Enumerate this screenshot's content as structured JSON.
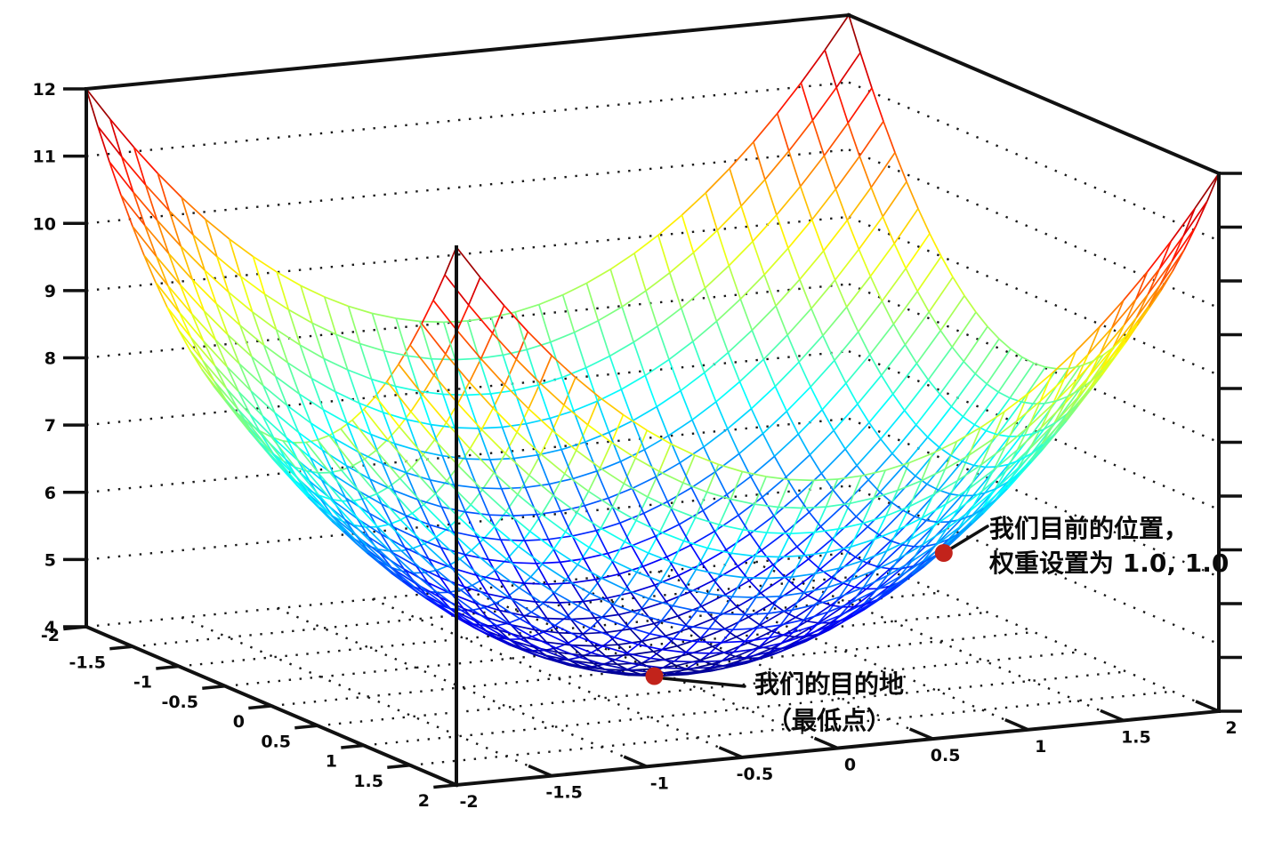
{
  "figure": {
    "background_color": "#ffffff"
  },
  "chart_data": {
    "type": "surface3d-wireframe",
    "title": "",
    "formula": "z = 4 + x^2 + y^2",
    "surface": {
      "z_base": 4,
      "x2_coeff": 1,
      "y2_coeff": 1,
      "x_range": [
        -2,
        2
      ],
      "y_range": [
        -2,
        2
      ],
      "z_range": [
        4,
        12
      ],
      "grid_cells": 32,
      "colormap": "jet"
    },
    "axes": {
      "z_ticks": [
        4,
        5,
        6,
        7,
        8,
        9,
        10,
        11,
        12
      ],
      "z_tick_labels": [
        "4",
        "5",
        "6",
        "7",
        "8",
        "9",
        "10",
        "11",
        "12"
      ],
      "x_ticks": [
        -2,
        -1.5,
        -1,
        -0.5,
        0,
        0.5,
        1,
        1.5,
        2
      ],
      "x_tick_labels": [
        "-2",
        "-1.5",
        "-1",
        "-0.5",
        "0",
        "0.5",
        "1",
        "1.5",
        "2"
      ],
      "y_ticks": [
        -2,
        -1.5,
        -1,
        -0.5,
        0,
        0.5,
        1,
        1.5,
        2
      ],
      "y_tick_labels": [
        "-2",
        "-1.5",
        "-1",
        "-0.5",
        "0",
        "0.5",
        "1",
        "1.5",
        "2"
      ],
      "right_axis_tick_count": 11,
      "wall_gridlines_z": [
        5,
        6,
        7,
        8,
        9,
        10,
        11
      ],
      "floor_grid_step": 0.5,
      "grid_style": "dotted",
      "legend": "none"
    },
    "annotations": [
      {
        "id": "current-position",
        "text_lines": [
          "我们目前的位置，",
          "权重设置为 1.0, 1.0"
        ],
        "point": {
          "x": 1,
          "y": 1,
          "z": 6
        },
        "dot_color": "#c2231b"
      },
      {
        "id": "destination",
        "text_lines": [
          "我们的目的地",
          "（最低点）"
        ],
        "point": {
          "x": 0,
          "y": 0,
          "z": 4
        },
        "dot_color": "#c2231b"
      }
    ],
    "colors": {
      "box_edge": "#111111",
      "grid_dots": "#1a1a1a",
      "tick_text": "#0a0a0a"
    }
  }
}
